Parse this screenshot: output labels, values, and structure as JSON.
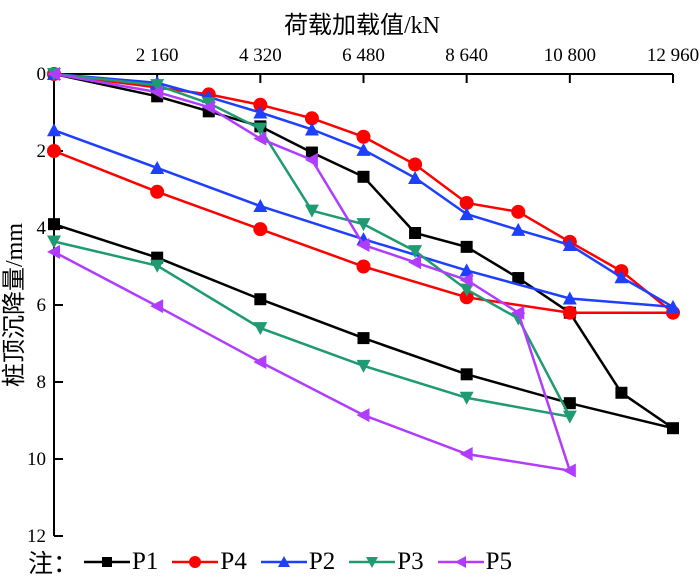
{
  "chart_data": {
    "type": "line",
    "title": "",
    "xlabel": "荷载加载值/kN",
    "ylabel": "桩顶沉降量/mm",
    "x_axis_position": "top",
    "y_axis_inverted": true,
    "xlim": [
      0,
      12960
    ],
    "ylim": [
      0,
      12
    ],
    "xticks": [
      2160,
      4320,
      6480,
      8640,
      10800,
      12960
    ],
    "xtick_labels": [
      "2 160",
      "4 320",
      "6 480",
      "8 640",
      "10 800",
      "12 960"
    ],
    "yticks": [
      0,
      2,
      4,
      6,
      8,
      10,
      12
    ],
    "ytick_labels": [
      "0",
      "2",
      "4",
      "6",
      "8",
      "10",
      "12"
    ],
    "grid": false,
    "legend_prefix": "注：",
    "legend_position": "bottom",
    "series": [
      {
        "name": "P1",
        "color": "#000000",
        "marker": "square",
        "points": [
          [
            0,
            0
          ],
          [
            2160,
            0.58
          ],
          [
            3240,
            0.97
          ],
          [
            4320,
            1.36
          ],
          [
            5400,
            2.04
          ],
          [
            6480,
            2.67
          ],
          [
            7560,
            4.13
          ],
          [
            8640,
            4.49
          ],
          [
            9720,
            5.3
          ],
          [
            10800,
            6.2
          ],
          [
            11880,
            8.28
          ],
          [
            12960,
            9.2
          ],
          [
            10800,
            8.55
          ],
          [
            8640,
            7.8
          ],
          [
            6480,
            6.86
          ],
          [
            4320,
            5.85
          ],
          [
            2160,
            4.77
          ],
          [
            0,
            3.9
          ]
        ]
      },
      {
        "name": "P4",
        "color": "#ff0000",
        "marker": "circle",
        "points": [
          [
            0,
            0
          ],
          [
            2160,
            0.35
          ],
          [
            3240,
            0.53
          ],
          [
            4320,
            0.8
          ],
          [
            5400,
            1.15
          ],
          [
            6480,
            1.63
          ],
          [
            7560,
            2.35
          ],
          [
            8640,
            3.35
          ],
          [
            9720,
            3.58
          ],
          [
            10800,
            4.36
          ],
          [
            11880,
            5.12
          ],
          [
            12960,
            6.2
          ],
          [
            10800,
            6.2
          ],
          [
            8640,
            5.8
          ],
          [
            6480,
            5.0
          ],
          [
            4320,
            4.03
          ],
          [
            2160,
            3.06
          ],
          [
            0,
            2.0
          ]
        ]
      },
      {
        "name": "P2",
        "color": "#1f3fff",
        "marker": "triangle-up",
        "points": [
          [
            0,
            0
          ],
          [
            2160,
            0.23
          ],
          [
            3240,
            0.6
          ],
          [
            4320,
            1.0
          ],
          [
            5400,
            1.44
          ],
          [
            6480,
            1.97
          ],
          [
            7560,
            2.7
          ],
          [
            8640,
            3.64
          ],
          [
            9720,
            4.05
          ],
          [
            10800,
            4.44
          ],
          [
            11880,
            5.28
          ],
          [
            12960,
            6.05
          ],
          [
            10800,
            5.83
          ],
          [
            8640,
            5.1
          ],
          [
            6480,
            4.29
          ],
          [
            4320,
            3.43
          ],
          [
            2160,
            2.44
          ],
          [
            0,
            1.46
          ]
        ]
      },
      {
        "name": "P3",
        "color": "#1f9a72",
        "marker": "triangle-down",
        "points": [
          [
            0,
            0
          ],
          [
            2160,
            0.29
          ],
          [
            3240,
            0.76
          ],
          [
            4320,
            1.42
          ],
          [
            5400,
            3.55
          ],
          [
            6480,
            3.9
          ],
          [
            7560,
            4.6
          ],
          [
            8640,
            5.6
          ],
          [
            9720,
            6.35
          ],
          [
            10800,
            8.9
          ],
          [
            8640,
            8.41
          ],
          [
            6480,
            7.58
          ],
          [
            4320,
            6.6
          ],
          [
            2160,
            4.98
          ],
          [
            0,
            4.35
          ]
        ]
      },
      {
        "name": "P5",
        "color": "#b03cff",
        "marker": "triangle-left",
        "points": [
          [
            0,
            0
          ],
          [
            2160,
            0.47
          ],
          [
            3240,
            0.86
          ],
          [
            4320,
            1.68
          ],
          [
            5400,
            2.23
          ],
          [
            6480,
            4.44
          ],
          [
            7560,
            4.89
          ],
          [
            8640,
            5.35
          ],
          [
            9720,
            6.2
          ],
          [
            10800,
            10.3
          ],
          [
            8640,
            9.87
          ],
          [
            6480,
            8.86
          ],
          [
            4320,
            7.48
          ],
          [
            2160,
            6.03
          ],
          [
            0,
            4.62
          ]
        ]
      }
    ]
  }
}
